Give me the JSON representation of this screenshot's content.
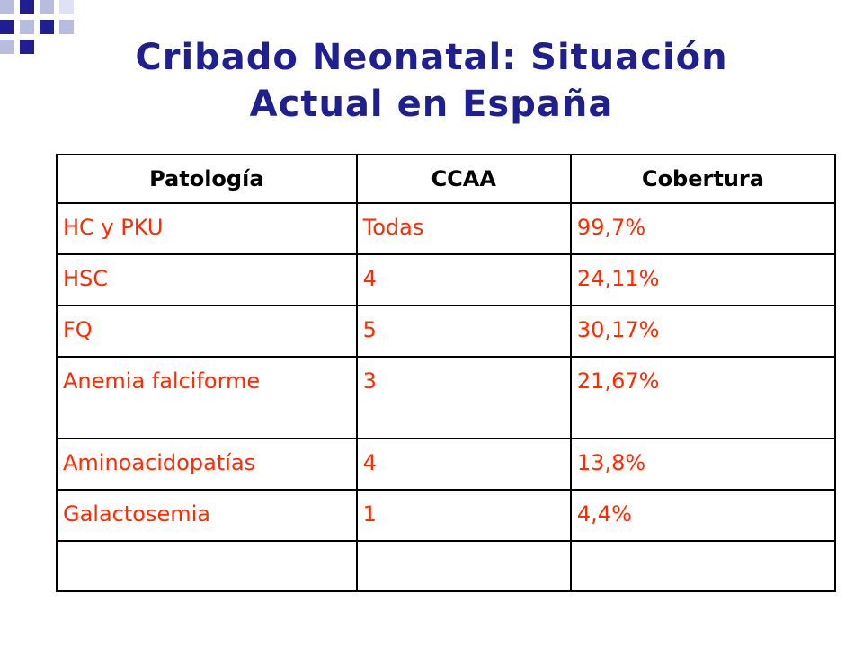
{
  "slide": {
    "title_line1": "Cribado Neonatal: Situación",
    "title_line2": "Actual en España"
  },
  "table": {
    "headers": [
      "Patología",
      "CCAA",
      "Cobertura"
    ],
    "rows": [
      [
        "HC y PKU",
        "Todas",
        "99,7%"
      ],
      [
        "HSC",
        "4",
        "24,11%"
      ],
      [
        "FQ",
        "5",
        "30,17%"
      ],
      [
        "Anemia falciforme",
        "3",
        "21,67%"
      ],
      [
        "Aminoacidopatías",
        "4",
        "13,8%"
      ],
      [
        "Galactosemia",
        "1",
        "4,4%"
      ],
      [
        "",
        "",
        ""
      ]
    ]
  },
  "colors": {
    "title": "#1f1f8f",
    "cell_text": "#ff2a00",
    "deco_blue": "#1f1f8f",
    "deco_light": "#b8bde0"
  }
}
